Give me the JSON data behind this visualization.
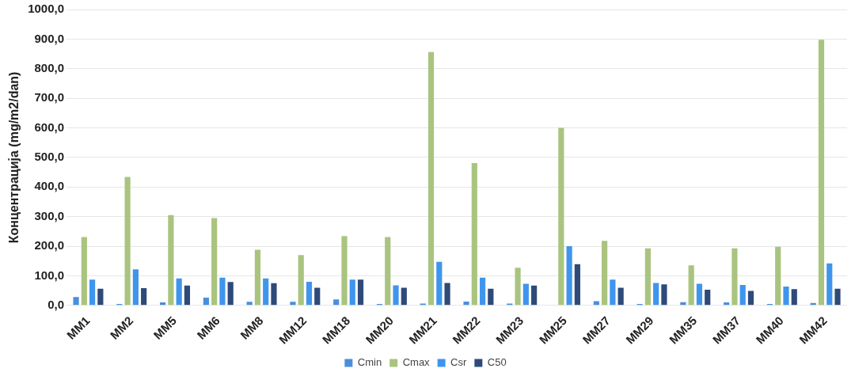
{
  "chart_data": {
    "type": "bar",
    "ylabel": "Концентрација (mg/m2/dan)",
    "categories": [
      "MM1",
      "MM2",
      "MM5",
      "MM6",
      "MM8",
      "MM12",
      "MM18",
      "MM20",
      "MM21",
      "MM22",
      "MM23",
      "MM25",
      "MM27",
      "MM29",
      "MM35",
      "MM37",
      "MM40",
      "MM42"
    ],
    "series": [
      {
        "name": "Cmin",
        "color": "#4a8fdc",
        "values": [
          28,
          5,
          10,
          26,
          12,
          12,
          20,
          5,
          6,
          13,
          6,
          null,
          14,
          5,
          11,
          10,
          5,
          8
        ]
      },
      {
        "name": "Cmax",
        "color": "#a9c47f",
        "values": [
          231,
          434,
          305,
          295,
          188,
          170,
          234,
          231,
          856,
          481,
          127,
          600,
          218,
          193,
          135,
          193,
          198,
          898
        ]
      },
      {
        "name": "Csr",
        "color": "#3f95ee",
        "values": [
          87,
          122,
          91,
          94,
          91,
          80,
          87,
          68,
          147,
          94,
          73,
          200,
          87,
          76,
          73,
          69,
          64,
          142
        ]
      },
      {
        "name": "C50",
        "color": "#2e4a7a",
        "values": [
          56,
          58,
          67,
          79,
          75,
          60,
          87,
          60,
          76,
          56,
          67,
          139,
          60,
          71,
          53,
          49,
          55,
          56
        ]
      }
    ],
    "ylim": [
      0,
      1000
    ],
    "yticks": [
      {
        "value": 0,
        "label": "0,0"
      },
      {
        "value": 100,
        "label": "100,0"
      },
      {
        "value": 200,
        "label": "200,0"
      },
      {
        "value": 300,
        "label": "300,0"
      },
      {
        "value": 400,
        "label": "400,0"
      },
      {
        "value": 500,
        "label": "500,0"
      },
      {
        "value": 600,
        "label": "600,0"
      },
      {
        "value": 700,
        "label": "700,0"
      },
      {
        "value": 800,
        "label": "800,0"
      },
      {
        "value": 900,
        "label": "900,0"
      },
      {
        "value": 1000,
        "label": "1000,0"
      }
    ],
    "grid": "y",
    "legend": "bottom"
  }
}
